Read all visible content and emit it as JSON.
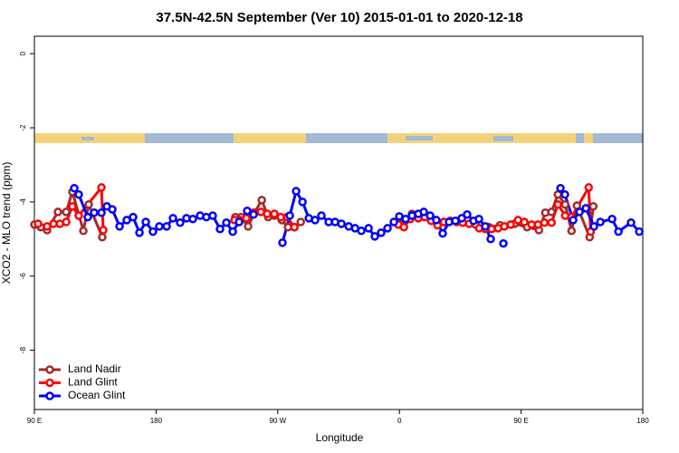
{
  "chart_data": {
    "type": "line",
    "title": "37.5N-42.5N September (Ver 10)   2015-01-01 to 2020-12-18",
    "x_label": "Longitude",
    "y_label": "XCO2 - MLO trend (ppm)",
    "xlim": [
      90,
      540
    ],
    "ylim": [
      -9.6,
      0.47
    ],
    "xticks": [
      {
        "value": 90,
        "label": "90 E"
      },
      180,
      {
        "value": 270,
        "label": "90 W"
      },
      0,
      {
        "value": 450,
        "label": "90 E"
      },
      180
    ],
    "xtick_positions": [
      90,
      180,
      270,
      360,
      450,
      540
    ],
    "yticks": [
      0,
      -2,
      -4,
      -6,
      -8
    ],
    "legend": "bottom-left",
    "series": [
      {
        "name": "Land Nadir",
        "color": "#a52a2a",
        "x": [
          90,
          94.7,
          99.4,
          107.4,
          113.5,
          118.1,
          126.2,
          130.2,
          140.2,
          null,
          238.7,
          242.8,
          248.1,
          252.8,
          258.2,
          262.9,
          267.5,
          272.9,
          277.6,
          282.3,
          287,
          null,
          360,
          364.6,
          369.3,
          374,
          378.8,
          383.5,
          392.9,
          397.6,
          406.9,
          416.3,
          426.3,
          434.4,
          445.1,
          454.5,
          463.2,
          467.9,
          472.5,
          477.2,
          482.6,
          487.3,
          491.3,
          500.7,
          503.4
        ],
        "values": [
          -4.61,
          -4.68,
          -4.76,
          -4.27,
          -4.27,
          -3.73,
          -4.78,
          -4.07,
          -4.95,
          null,
          -4.41,
          -4.41,
          -4.66,
          -4.29,
          -3.95,
          -4.41,
          -4.37,
          -4.49,
          -4.68,
          -4.68,
          -4.54,
          null,
          -4.56,
          -4.49,
          -4.32,
          -4.41,
          -4.37,
          -4.44,
          -4.54,
          -4.51,
          -4.56,
          -4.61,
          -4.68,
          -4.63,
          -4.59,
          -4.68,
          -4.76,
          -4.29,
          -4.27,
          -3.8,
          -4.07,
          -4.78,
          -4.1,
          -4.95,
          -4.12
        ]
      },
      {
        "name": "Land Glint",
        "color": "#ff0000",
        "x": [
          92.7,
          99.4,
          104.1,
          108.8,
          113.5,
          118.1,
          122.8,
          139.6,
          140.9,
          null,
          238,
          242,
          246.8,
          252.1,
          257.5,
          262.2,
          267.5,
          272.2,
          276.9,
          282.3,
          null,
          359.3,
          363.3,
          368,
          374,
          378.8,
          383.5,
          388.2,
          392.9,
          397.6,
          402.3,
          406.9,
          411.6,
          419,
          423.5,
          428.2,
          433,
          437.6,
          442.3,
          447.7,
          452.4,
          457.8,
          462.5,
          467.2,
          472.5,
          477.2,
          482.6,
          487.3,
          500,
          501.4
        ],
        "values": [
          -4.59,
          -4.66,
          -4.59,
          -4.59,
          -4.54,
          -4.12,
          -4.37,
          -3.61,
          -4.76,
          null,
          -4.49,
          -4.49,
          -4.44,
          -4.29,
          -4.27,
          -4.32,
          -4.32,
          -4.41,
          -4.41,
          -4.68,
          null,
          -4.61,
          -4.68,
          -4.46,
          -4.44,
          -4.41,
          -4.51,
          -4.63,
          -4.54,
          -4.51,
          -4.54,
          -4.56,
          -4.59,
          -4.71,
          -4.73,
          -4.73,
          -4.71,
          -4.66,
          -4.61,
          -4.49,
          -4.54,
          -4.61,
          -4.61,
          -4.56,
          -4.56,
          -4.07,
          -4.37,
          -4.41,
          -3.61,
          -4.8
        ]
      },
      {
        "name": "Ocean Glint",
        "color": "#0000ff",
        "x": [
          119.5,
          122.8,
          129.5,
          134.2,
          139.6,
          143.6,
          147.6,
          153,
          158.3,
          163,
          167.7,
          172.4,
          177.7,
          182.4,
          187.8,
          192.5,
          197.8,
          202.5,
          207.2,
          212.6,
          217.2,
          221.9,
          227.3,
          232,
          236.7,
          241.4,
          247.4,
          252.1,
          null,
          273.5,
          278.9,
          283.6,
          288.3,
          293,
          297.6,
          302.3,
          307.7,
          312.4,
          317.1,
          322.5,
          327.2,
          331.8,
          337.2,
          341.8,
          346.5,
          351.2,
          355.9,
          359.9,
          364.6,
          369.3,
          374,
          378,
          382.7,
          387.3,
          392,
          396.7,
          401.4,
          406.1,
          410.1,
          414.8,
          418.8,
          423.5,
          427.5,
          null,
          436.9,
          null,
          479.1,
          482.4,
          488.5,
          493.2,
          497.9,
          503.9,
          508.6,
          517.3,
          522,
          531.3,
          537.4
        ],
        "values": [
          -3.63,
          -3.8,
          -4.41,
          -4.29,
          -4.29,
          -4.12,
          -4.2,
          -4.66,
          -4.49,
          -4.41,
          -4.83,
          -4.54,
          -4.8,
          -4.66,
          -4.66,
          -4.44,
          -4.56,
          -4.44,
          -4.46,
          -4.37,
          -4.41,
          -4.37,
          -4.73,
          -4.56,
          -4.8,
          -4.54,
          -4.24,
          -4.34,
          null,
          -5.1,
          -4.37,
          -3.71,
          -4.0,
          -4.44,
          -4.49,
          -4.37,
          -4.54,
          -4.54,
          -4.59,
          -4.66,
          -4.71,
          -4.78,
          -4.71,
          -4.93,
          -4.83,
          -4.71,
          -4.54,
          -4.39,
          -4.46,
          -4.37,
          -4.32,
          -4.27,
          -4.37,
          -4.49,
          -4.85,
          -4.54,
          -4.51,
          -4.44,
          -4.34,
          -4.51,
          -4.46,
          -4.66,
          -5.0,
          null,
          -5.12,
          null,
          -3.63,
          -3.8,
          -4.49,
          -4.27,
          -4.17,
          -4.66,
          -4.54,
          -4.46,
          -4.8,
          -4.56,
          -4.8
        ]
      }
    ]
  }
}
